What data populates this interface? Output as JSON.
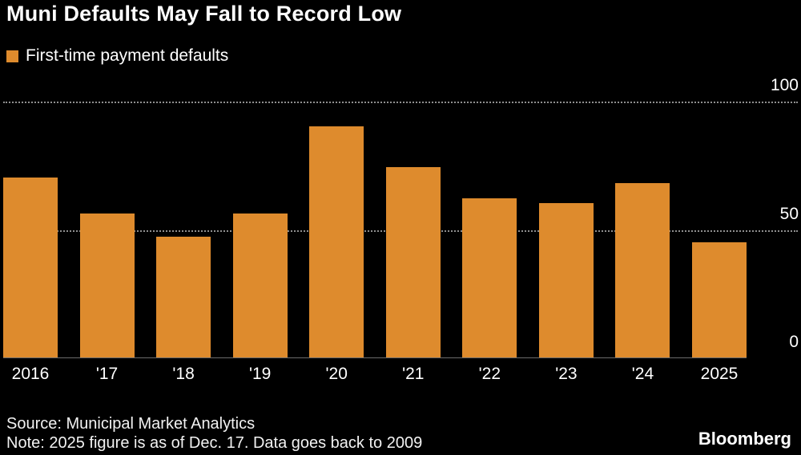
{
  "title": "Muni Defaults May Fall to Record Low",
  "legend": {
    "label": "First-time payment defaults",
    "color": "#DE8B2D"
  },
  "source": "Source: Municipal Market Analytics",
  "note": "Note: 2025 figure is as of Dec. 17. Data goes back to 2009",
  "brand": "Bloomberg",
  "chart_data": {
    "type": "bar",
    "title": "Muni Defaults May Fall to Record Low",
    "legend_entries": [
      "First-time payment defaults"
    ],
    "legend_position": "top-left",
    "categories": [
      "2016",
      "'17",
      "'18",
      "'19",
      "'20",
      "'21",
      "'22",
      "'23",
      "'24",
      "2025"
    ],
    "values": [
      70,
      56,
      47,
      56,
      90,
      74,
      62,
      60,
      68,
      45
    ],
    "xlabel": "",
    "ylabel": "",
    "ylim": [
      0,
      100
    ],
    "yticks": [
      0,
      50,
      100
    ],
    "gridlines": [
      50,
      100
    ],
    "grid_style": "dotted",
    "bar_color": "#DE8B2D",
    "background_color": "#000000",
    "y_axis_side": "right"
  }
}
